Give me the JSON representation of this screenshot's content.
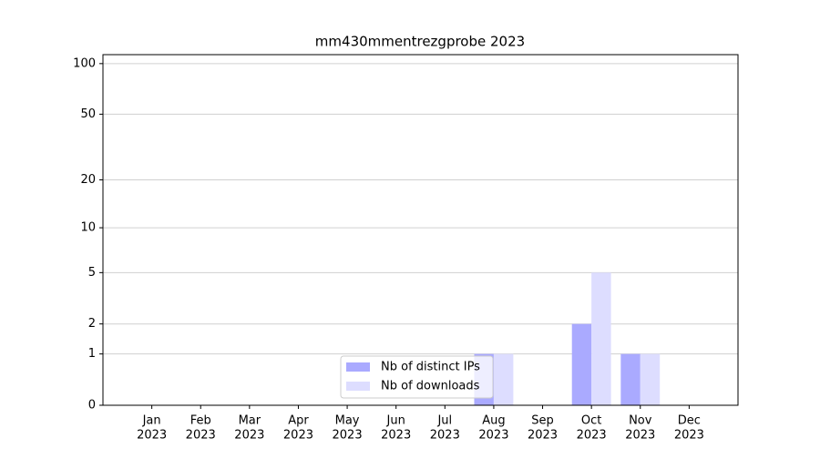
{
  "chart_data": {
    "type": "bar",
    "title": "mm430mmentrezgprobe 2023",
    "categories": [
      [
        "Jan",
        "2023"
      ],
      [
        "Feb",
        "2023"
      ],
      [
        "Mar",
        "2023"
      ],
      [
        "Apr",
        "2023"
      ],
      [
        "May",
        "2023"
      ],
      [
        "Jun",
        "2023"
      ],
      [
        "Jul",
        "2023"
      ],
      [
        "Aug",
        "2023"
      ],
      [
        "Sep",
        "2023"
      ],
      [
        "Oct",
        "2023"
      ],
      [
        "Nov",
        "2023"
      ],
      [
        "Dec",
        "2023"
      ]
    ],
    "series": [
      {
        "name": "Nb of distinct IPs",
        "color": "#aaaaff",
        "values": [
          0,
          0,
          0,
          0,
          0,
          0,
          0,
          1,
          0,
          2,
          1,
          0
        ]
      },
      {
        "name": "Nb of downloads",
        "color": "#ddddff",
        "values": [
          0,
          0,
          0,
          0,
          0,
          0,
          0,
          1,
          0,
          5,
          1,
          0
        ]
      }
    ],
    "yscale": "log1p",
    "ylim": [
      0,
      113
    ],
    "yticks": [
      0,
      1,
      2,
      5,
      10,
      20,
      50,
      100
    ],
    "grid": true,
    "legend": "lower center"
  }
}
